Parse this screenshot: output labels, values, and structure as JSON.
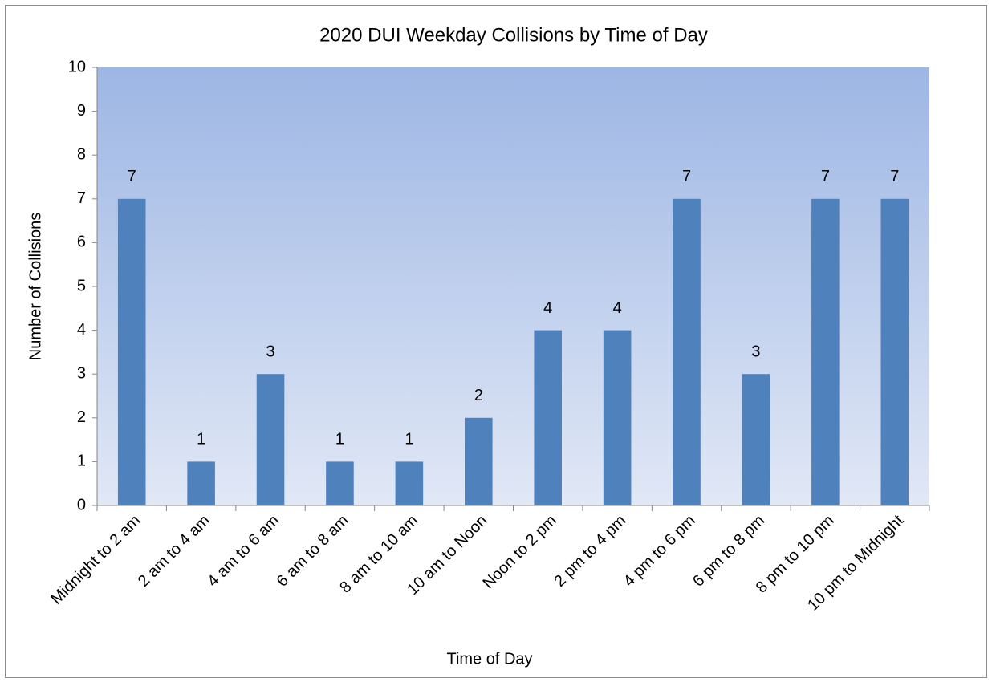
{
  "chart_data": {
    "type": "bar",
    "title": "2020 DUI Weekday Collisions by Time of Day",
    "x_label": "Time of Day",
    "y_label": "Number of Collisions",
    "categories": [
      "Midnight to 2 am",
      "2 am to 4 am",
      "4 am to 6 am",
      "6 am to 8 am",
      "8 am to 10 am",
      "10 am to Noon",
      "Noon to 2 pm",
      "2 pm to 4 pm",
      "4 pm to 6 pm",
      "6 pm to 8 pm",
      "8 pm to 10 pm",
      "10 pm to Midnight"
    ],
    "values": [
      7,
      1,
      3,
      1,
      1,
      2,
      4,
      4,
      7,
      3,
      7,
      7
    ],
    "color": "#4f81bd",
    "ylim": [
      0,
      10
    ],
    "yticks": [
      0,
      1,
      2,
      3,
      4,
      5,
      6,
      7,
      8,
      9,
      10
    ],
    "grid": false
  }
}
